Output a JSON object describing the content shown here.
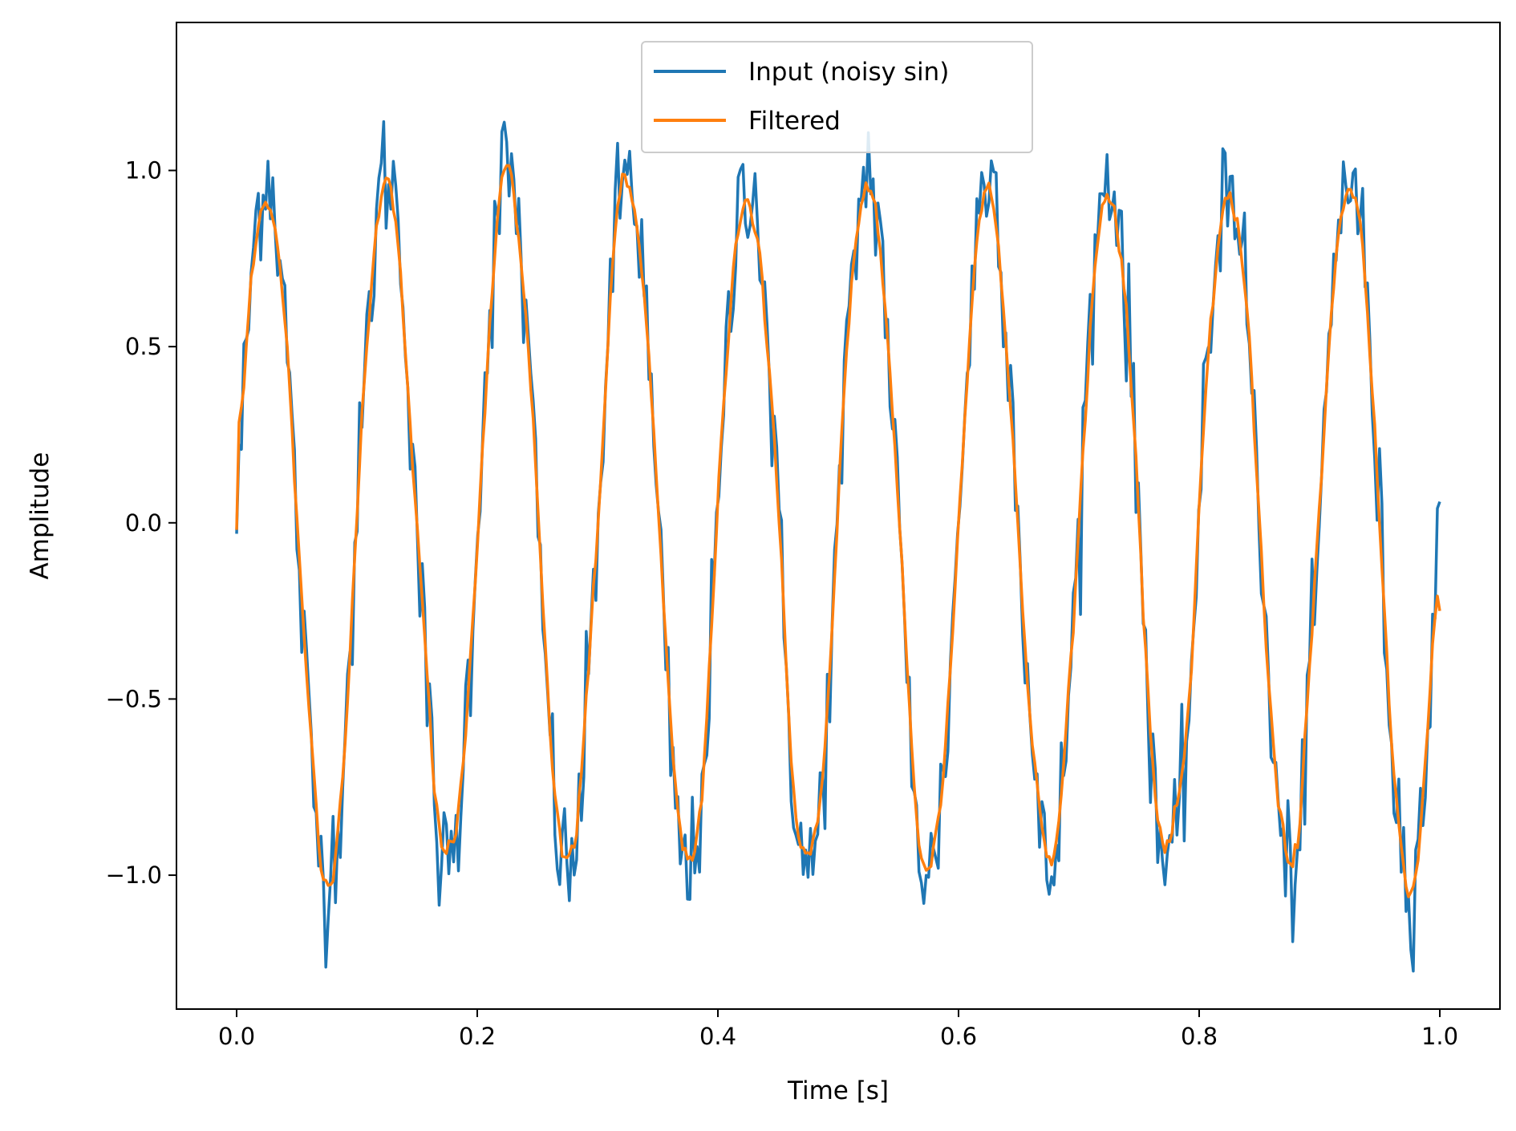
{
  "chart_data": {
    "type": "line",
    "title": "",
    "xlabel": "Time [s]",
    "ylabel": "Amplitude",
    "xlim": [
      -0.05,
      1.05
    ],
    "ylim": [
      -1.38,
      1.42
    ],
    "xticks": [
      0.0,
      0.2,
      0.4,
      0.6,
      0.8,
      1.0
    ],
    "xtick_labels": [
      "0.0",
      "0.2",
      "0.4",
      "0.6",
      "0.8",
      "1.0"
    ],
    "yticks": [
      -1.0,
      -0.5,
      0.0,
      0.5,
      1.0
    ],
    "ytick_labels": [
      "−1.0",
      "−0.5",
      "0.0",
      "0.5",
      "1.0"
    ],
    "grid": false,
    "legend_position": "upper-center",
    "signal": {
      "frequency_hz": 10,
      "duration_s": 1.0,
      "num_points": 500,
      "noise_amplitude": 0.1
    },
    "series": [
      {
        "name": "Input (noisy sin)",
        "color": "#1f77b4",
        "kind": "noisy"
      },
      {
        "name": "Filtered",
        "color": "#ff7f0e",
        "kind": "filtered"
      }
    ]
  }
}
